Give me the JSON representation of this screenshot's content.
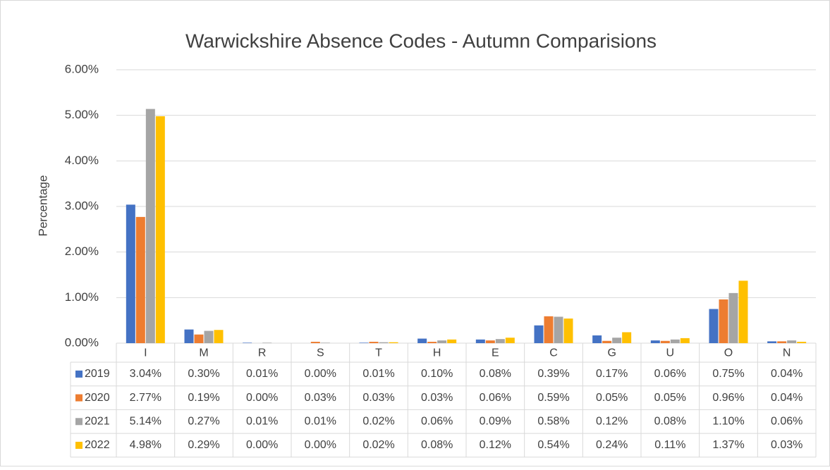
{
  "chart_data": {
    "type": "bar",
    "title": "Warwickshire Absence Codes - Autumn Comparisions",
    "y_label": "Percentage",
    "categories": [
      "I",
      "M",
      "R",
      "S",
      "T",
      "H",
      "E",
      "C",
      "G",
      "U",
      "O",
      "N"
    ],
    "series": [
      {
        "name": "2019",
        "color": "#4472c4",
        "values": [
          3.04,
          0.3,
          0.01,
          0.0,
          0.01,
          0.1,
          0.08,
          0.39,
          0.17,
          0.06,
          0.75,
          0.04
        ],
        "value_labels": [
          "3.04%",
          "0.30%",
          "0.01%",
          "0.00%",
          "0.01%",
          "0.10%",
          "0.08%",
          "0.39%",
          "0.17%",
          "0.06%",
          "0.75%",
          "0.04%"
        ]
      },
      {
        "name": "2020",
        "color": "#ed7d31",
        "values": [
          2.77,
          0.19,
          0.0,
          0.03,
          0.03,
          0.03,
          0.06,
          0.59,
          0.05,
          0.05,
          0.96,
          0.04
        ],
        "value_labels": [
          "2.77%",
          "0.19%",
          "0.00%",
          "0.03%",
          "0.03%",
          "0.03%",
          "0.06%",
          "0.59%",
          "0.05%",
          "0.05%",
          "0.96%",
          "0.04%"
        ]
      },
      {
        "name": "2021",
        "color": "#a5a5a5",
        "values": [
          5.14,
          0.27,
          0.01,
          0.01,
          0.02,
          0.06,
          0.09,
          0.58,
          0.12,
          0.08,
          1.1,
          0.06
        ],
        "value_labels": [
          "5.14%",
          "0.27%",
          "0.01%",
          "0.01%",
          "0.02%",
          "0.06%",
          "0.09%",
          "0.58%",
          "0.12%",
          "0.08%",
          "1.10%",
          "0.06%"
        ]
      },
      {
        "name": "2022",
        "color": "#ffc000",
        "values": [
          4.98,
          0.29,
          0.0,
          0.0,
          0.02,
          0.08,
          0.12,
          0.54,
          0.24,
          0.11,
          1.37,
          0.03
        ],
        "value_labels": [
          "4.98%",
          "0.29%",
          "0.00%",
          "0.00%",
          "0.02%",
          "0.08%",
          "0.12%",
          "0.54%",
          "0.24%",
          "0.11%",
          "1.37%",
          "0.03%"
        ]
      }
    ],
    "ylim": [
      0,
      6
    ],
    "yticks": [
      {
        "value": 0,
        "label": "0.00%"
      },
      {
        "value": 1,
        "label": "1.00%"
      },
      {
        "value": 2,
        "label": "2.00%"
      },
      {
        "value": 3,
        "label": "3.00%"
      },
      {
        "value": 4,
        "label": "4.00%"
      },
      {
        "value": 5,
        "label": "5.00%"
      },
      {
        "value": 6,
        "label": "6.00%"
      }
    ],
    "grid": true
  }
}
